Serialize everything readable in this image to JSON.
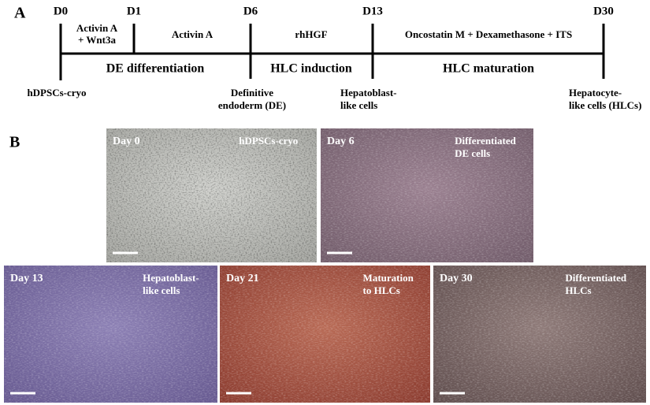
{
  "panel_a": {
    "label": "A",
    "timepoints": [
      "D0",
      "D1",
      "D6",
      "D13",
      "D30"
    ],
    "treatments": [
      [
        "Activin A",
        "+ Wnt3a"
      ],
      [
        "Activin A"
      ],
      [
        "rhHGF"
      ],
      [
        "Oncostatin M + Dexamethasone + ITS"
      ]
    ],
    "stages": [
      "DE differentiation",
      "HLC induction",
      "HLC maturation"
    ],
    "cell_types": [
      [
        "hDPSCs-cryo"
      ],
      [
        "Definitive",
        "endoderm (DE)"
      ],
      [
        "Hepatoblast-",
        "like cells"
      ],
      [
        "Hepatocyte-",
        "like cells (HLCs)"
      ]
    ]
  },
  "panel_b": {
    "label": "B",
    "images": [
      {
        "day": "Day 0",
        "caption": [
          "hDPSCs-cryo"
        ]
      },
      {
        "day": "Day 6",
        "caption": [
          "Differentiated",
          "DE cells"
        ]
      },
      {
        "day": "Day 13",
        "caption": [
          "Hepatoblast-",
          "like cells"
        ]
      },
      {
        "day": "Day 21",
        "caption": [
          "Maturation",
          "to HLCs"
        ]
      },
      {
        "day": "Day 30",
        "caption": [
          "Differentiated",
          "HLCs"
        ]
      }
    ]
  }
}
